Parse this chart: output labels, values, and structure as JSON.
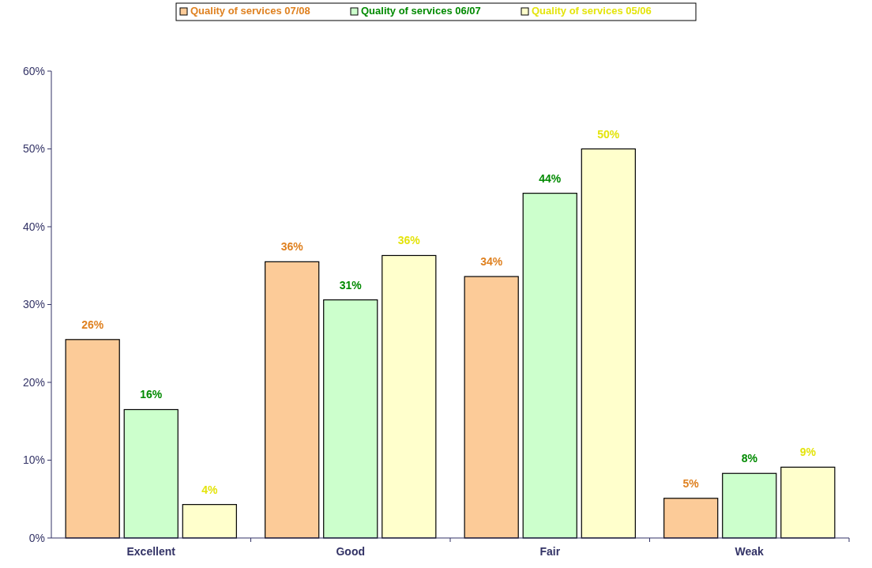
{
  "chart_data": {
    "type": "bar",
    "categories": [
      "Excellent",
      "Good",
      "Fair",
      "Weak"
    ],
    "series": [
      {
        "name": "Quality of services 07/08",
        "color": "#fccb98",
        "values": [
          25.5,
          35.5,
          33.6,
          5.1
        ],
        "value_labels": [
          "26%",
          "36%",
          "34%",
          "5%"
        ]
      },
      {
        "name": "Quality of services 06/07",
        "color": "#ccffcc",
        "values": [
          16.5,
          30.6,
          44.3,
          8.3
        ],
        "value_labels": [
          "16%",
          "31%",
          "44%",
          "8%"
        ]
      },
      {
        "name": "Quality of services 05/06",
        "color": "#ffffcc",
        "values": [
          4.3,
          36.3,
          50,
          9.1
        ],
        "value_labels": [
          "4%",
          "36%",
          "50%",
          "9%"
        ]
      }
    ],
    "ylim": [
      0,
      60
    ],
    "yticks": [
      {
        "value": 0,
        "label": "0%"
      },
      {
        "value": 10,
        "label": "10%"
      },
      {
        "value": 20,
        "label": "20%"
      },
      {
        "value": 30,
        "label": "30%"
      },
      {
        "value": 40,
        "label": "40%"
      },
      {
        "value": 50,
        "label": "50%"
      },
      {
        "value": 60,
        "label": "60%"
      }
    ],
    "grid": false,
    "legend": "top"
  }
}
